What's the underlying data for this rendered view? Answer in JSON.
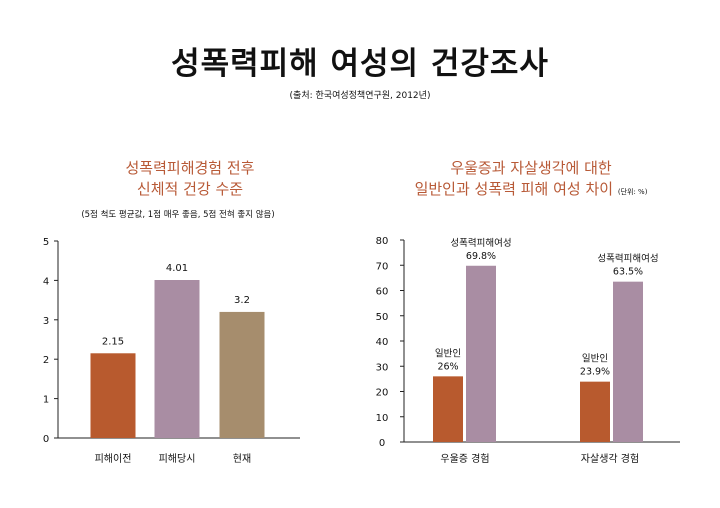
{
  "header": {
    "title": "성폭력피해 여성의 건강조사",
    "source": "(출처: 한국여성정책연구원, 2012년)"
  },
  "colors": {
    "accent": "#b85a37",
    "orange": "#b85a2e",
    "mauve": "#a98da3",
    "tan": "#a68d6d",
    "axis": "#222222"
  },
  "chart_data": [
    {
      "type": "bar",
      "title": [
        "성폭력피해경험 전후",
        "신체적 건강 수준"
      ],
      "note": "(5점 척도 평균값, 1점 매우 좋음, 5점 전혀 좋지 않음)",
      "categories": [
        "피해이전",
        "피해당시",
        "현재"
      ],
      "values": [
        2.15,
        4.01,
        3.2
      ],
      "value_labels": [
        "2.15",
        "4.01",
        "3.2"
      ],
      "bar_colors": [
        "#b85a2e",
        "#a98da3",
        "#a68d6d"
      ],
      "ylim": [
        0,
        5
      ],
      "yticks": [
        "0",
        "1",
        "2",
        "3",
        "4",
        "5"
      ],
      "grid": false,
      "xlabel": "",
      "ylabel": ""
    },
    {
      "type": "bar",
      "title": [
        "우울증과 자살생각에 대한",
        "일반인과 성폭력 피해 여성 차이"
      ],
      "unit": "(단위: %)",
      "categories": [
        "우울증 경험",
        "자살생각 경험"
      ],
      "series": [
        {
          "name": "일반인",
          "values": [
            26,
            23.9
          ],
          "value_labels": [
            "26%",
            "23.9%"
          ],
          "color": "#b85a2e"
        },
        {
          "name": "성폭력피해여성",
          "values": [
            69.8,
            63.5
          ],
          "value_labels": [
            "69.8%",
            "63.5%"
          ],
          "color": "#a98da3"
        }
      ],
      "ylim": [
        0,
        80
      ],
      "yticks": [
        "0",
        "10",
        "20",
        "30",
        "40",
        "50",
        "60",
        "70",
        "80"
      ],
      "grid": false,
      "xlabel": "",
      "ylabel": ""
    }
  ]
}
